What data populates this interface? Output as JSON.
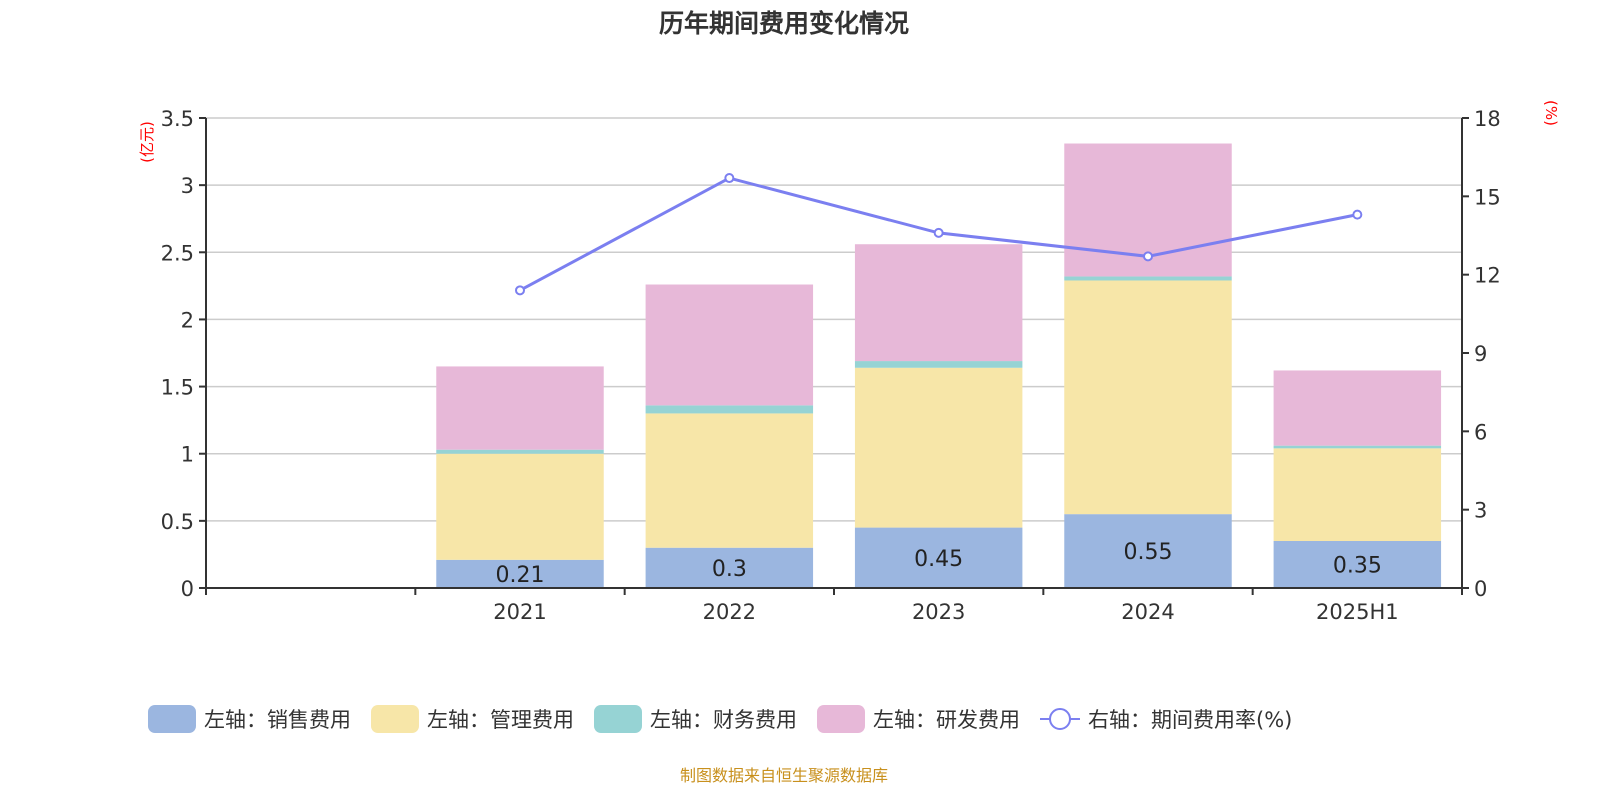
{
  "chart_data": {
    "type": "bar",
    "stacked": true,
    "title": "历年期间费用变化情况",
    "categories": [
      "2021",
      "2022",
      "2023",
      "2024",
      "2025H1"
    ],
    "left_axis": {
      "label": "(亿元)",
      "range": [
        0,
        3.5
      ],
      "ticks": [
        "0",
        "0.5",
        "1",
        "1.5",
        "2",
        "2.5",
        "3",
        "3.5"
      ],
      "tick_values": [
        0,
        0.5,
        1,
        1.5,
        2,
        2.5,
        3,
        3.5
      ]
    },
    "right_axis": {
      "label": "(%)",
      "range": [
        0,
        18
      ],
      "ticks": [
        "0",
        "3",
        "6",
        "9",
        "12",
        "15",
        "18"
      ],
      "tick_values": [
        0,
        3,
        6,
        9,
        12,
        15,
        18
      ]
    },
    "grid": true,
    "legend_position": "bottom",
    "series": [
      {
        "name": "左轴：销售费用",
        "type": "bar",
        "axis": "left",
        "color": "#9bb6e0",
        "values": [
          0.21,
          0.3,
          0.45,
          0.55,
          0.35
        ],
        "labels": [
          "0.21",
          "0.3",
          "0.45",
          "0.55",
          "0.35"
        ]
      },
      {
        "name": "左轴：管理费用",
        "type": "bar",
        "axis": "left",
        "color": "#f7e6a8",
        "values": [
          0.79,
          1.0,
          1.19,
          1.74,
          0.69
        ]
      },
      {
        "name": "左轴：财务费用",
        "type": "bar",
        "axis": "left",
        "color": "#96d3d4",
        "values": [
          0.03,
          0.06,
          0.05,
          0.03,
          0.02
        ]
      },
      {
        "name": "左轴：研发费用",
        "type": "bar",
        "axis": "left",
        "color": "#e7b8d8",
        "values": [
          0.62,
          0.9,
          0.87,
          0.99,
          0.56
        ]
      },
      {
        "name": "右轴：期间费用率(%)",
        "type": "line",
        "axis": "right",
        "color": "#7b7ff0",
        "values": [
          11.4,
          15.7,
          13.6,
          12.7,
          14.3
        ]
      }
    ]
  },
  "footer": {
    "source": "制图数据来自恒生聚源数据库"
  },
  "colors": {
    "axis_label": "#ff0000",
    "axis": "#333333",
    "grid": "#cccccc"
  }
}
